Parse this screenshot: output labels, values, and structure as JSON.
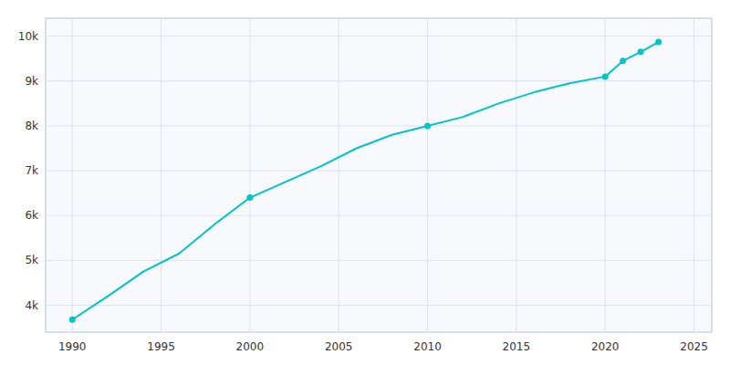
{
  "chart_data": {
    "type": "line",
    "x": [
      1990,
      1992,
      1994,
      1996,
      1998,
      2000,
      2002,
      2004,
      2006,
      2008,
      2010,
      2012,
      2014,
      2016,
      2018,
      2020,
      2021,
      2022,
      2023
    ],
    "series": [
      {
        "type": "line",
        "color": "#00C4C8",
        "values": [
          3680,
          4200,
          4750,
          5150,
          5800,
          6400,
          6750,
          7100,
          7500,
          7800,
          8000,
          8200,
          8500,
          8750,
          8950,
          9100,
          9450,
          9650,
          9870
        ]
      },
      {
        "type": "scatter",
        "marker": "circle",
        "color": "#00C4C8",
        "values": [
          3680,
          null,
          null,
          null,
          null,
          6400,
          null,
          null,
          null,
          null,
          8000,
          null,
          null,
          null,
          null,
          9100,
          9450,
          9650,
          9870
        ]
      }
    ],
    "xlim": [
      1988.5,
      2026
    ],
    "ylim": [
      3400,
      10400
    ],
    "xticks": [
      1990,
      1995,
      2000,
      2005,
      2010,
      2015,
      2020,
      2025
    ],
    "yticks": [
      {
        "value": 4000,
        "label": "4k"
      },
      {
        "value": 5000,
        "label": "5k"
      },
      {
        "value": 6000,
        "label": "6k"
      },
      {
        "value": 7000,
        "label": "7k"
      },
      {
        "value": 8000,
        "label": "8k"
      },
      {
        "value": 9000,
        "label": "9k"
      },
      {
        "value": 10000,
        "label": "10k"
      }
    ],
    "grid": true
  }
}
